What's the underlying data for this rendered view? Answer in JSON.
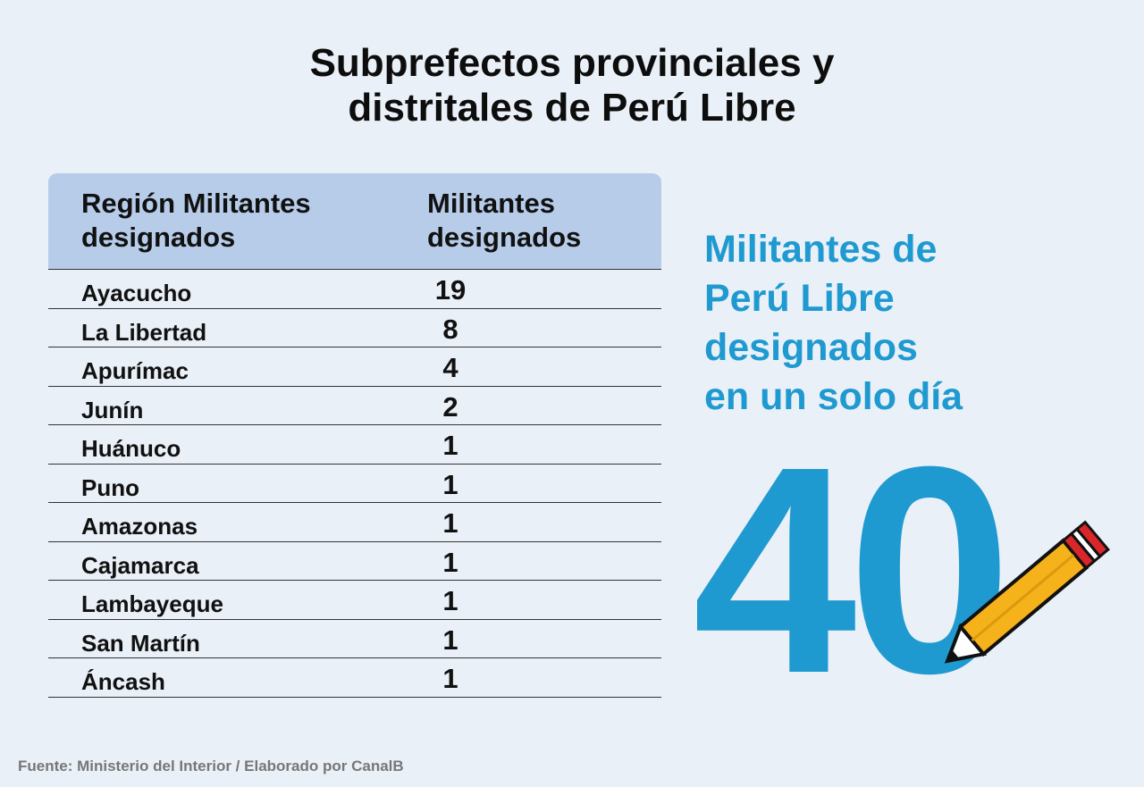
{
  "title": {
    "line1": "Subprefectos provinciales y",
    "line2": "distritales de Perú Libre"
  },
  "chart_data": {
    "type": "table",
    "columns": [
      "Región Militantes designados",
      "Militantes designados"
    ],
    "rows": [
      {
        "region": "Ayacucho",
        "value": 19
      },
      {
        "region": "La Libertad",
        "value": 8
      },
      {
        "region": "Apurímac",
        "value": 4
      },
      {
        "region": "Junín",
        "value": 2
      },
      {
        "region": "Huánuco",
        "value": 1
      },
      {
        "region": "Puno",
        "value": 1
      },
      {
        "region": "Amazonas",
        "value": 1
      },
      {
        "region": "Cajamarca",
        "value": 1
      },
      {
        "region": "Lambayeque",
        "value": 1
      },
      {
        "region": "San Martín",
        "value": 1
      },
      {
        "region": "Áncash",
        "value": 1
      }
    ]
  },
  "side": {
    "lines": [
      "Militantes de",
      "Perú Libre",
      "designados",
      "en un solo día"
    ],
    "total": "40",
    "icon": "pencil-icon"
  },
  "source": "Fuente: Ministerio del Interior / Elaborado por CanalB",
  "colors": {
    "background": "#eaf0f7",
    "header_bg": "#b6cce9",
    "accent_blue": "#1f9ad0",
    "pencil_yellow": "#f6b21a",
    "pencil_red": "#d9262b"
  }
}
